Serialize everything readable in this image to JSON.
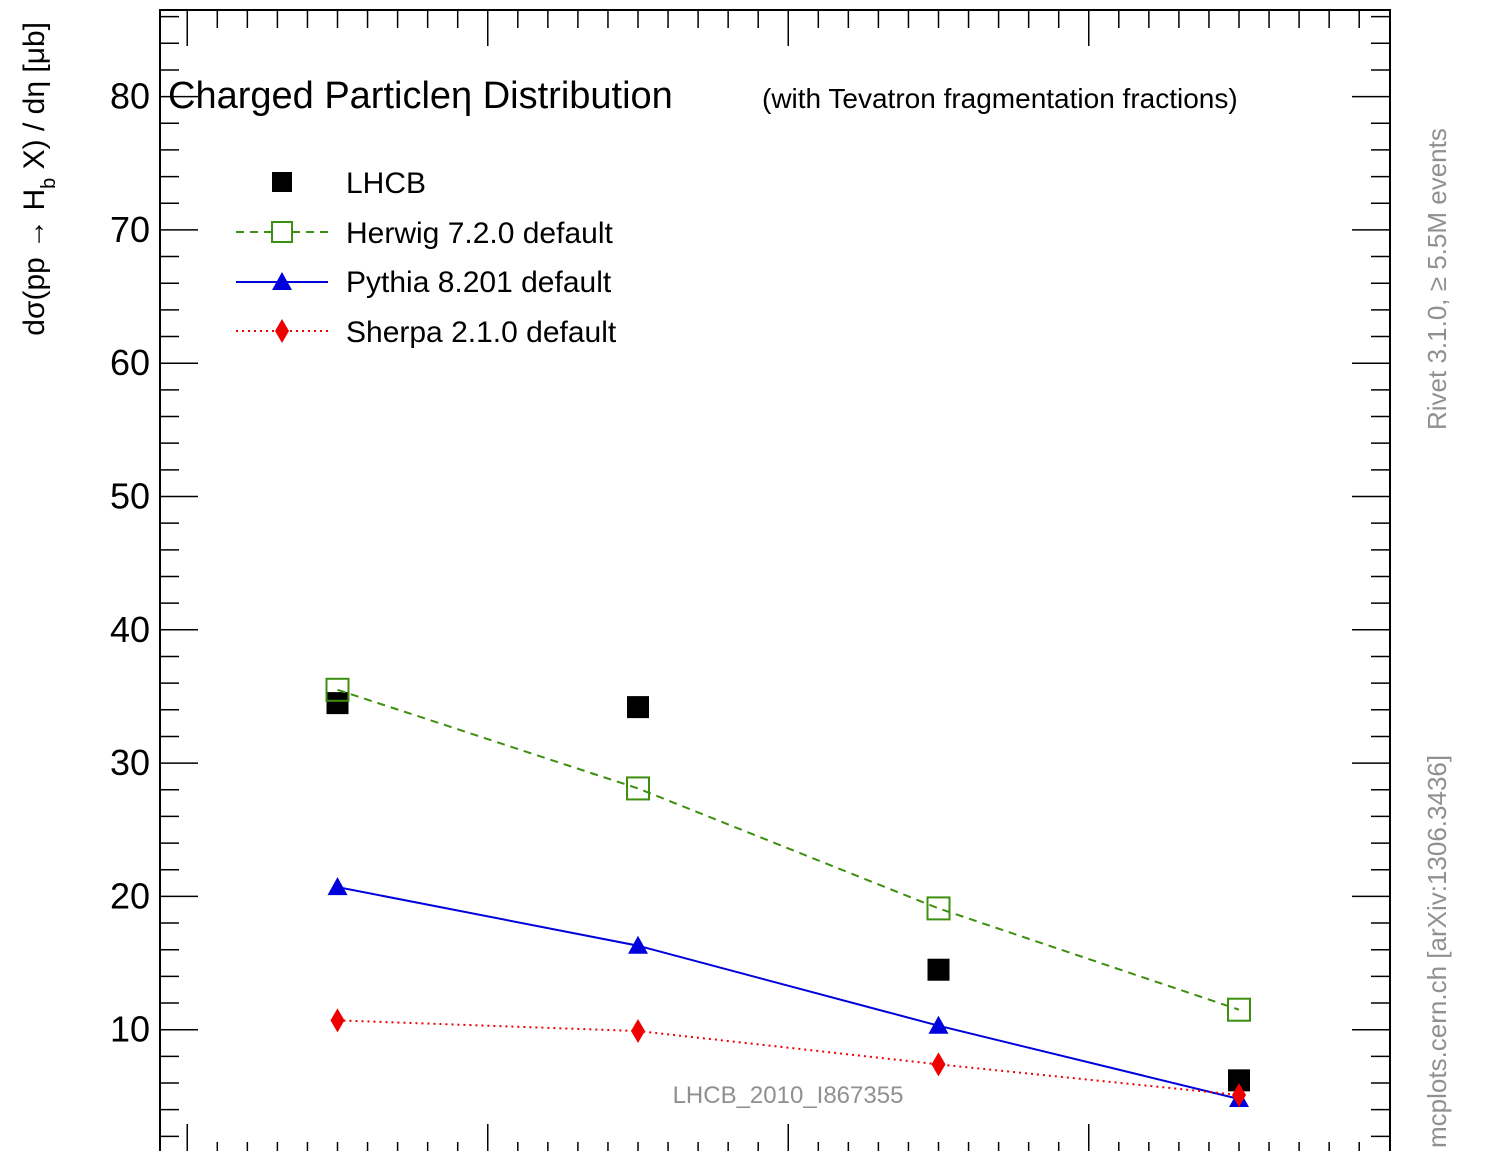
{
  "chart_data": {
    "type": "line",
    "title_main": "Charged Particleη Distribution",
    "title_sub": "(with Tevatron fragmentation fractions)",
    "ylabel_prefix": "dσ(pp → H",
    "ylabel_subscript": "b",
    "ylabel_suffix": " X) / dη [μb]",
    "ylim": [
      0,
      86
    ],
    "y_ticks": [
      {
        "value": 10,
        "label": "10"
      },
      {
        "value": 20,
        "label": "20"
      },
      {
        "value": 30,
        "label": "30"
      },
      {
        "value": 40,
        "label": "40"
      },
      {
        "value": 50,
        "label": "50"
      },
      {
        "value": 60,
        "label": "60"
      },
      {
        "value": 70,
        "label": "70"
      },
      {
        "value": 80,
        "label": "80"
      }
    ],
    "x_positions": [
      1,
      2,
      3,
      4
    ],
    "series": [
      {
        "name": "LHCB",
        "marker": "square-filled",
        "line": "none",
        "color": "#000000",
        "values": [
          34.5,
          34.2,
          14.5,
          6.2
        ]
      },
      {
        "name": "Herwig 7.2.0 default",
        "marker": "square-open",
        "line": "dashed",
        "color": "#3d8f10",
        "values": [
          35.5,
          28.1,
          19.1,
          11.5
        ]
      },
      {
        "name": "Pythia 8.201 default",
        "marker": "triangle",
        "line": "solid",
        "color": "#0000dd",
        "values": [
          20.7,
          16.3,
          10.3,
          4.8
        ]
      },
      {
        "name": "Sherpa 2.1.0 default",
        "marker": "diamond",
        "line": "dotted",
        "color": "#ee0000",
        "values": [
          10.7,
          9.9,
          7.4,
          5.1
        ]
      }
    ],
    "legend_position": "top-left",
    "watermark": "LHCB_2010_I867355",
    "side_label_top": "Rivet 3.1.0, ≥ 5.5M events",
    "side_label_bottom": "mcplots.cern.ch [arXiv:1306.3436]"
  }
}
